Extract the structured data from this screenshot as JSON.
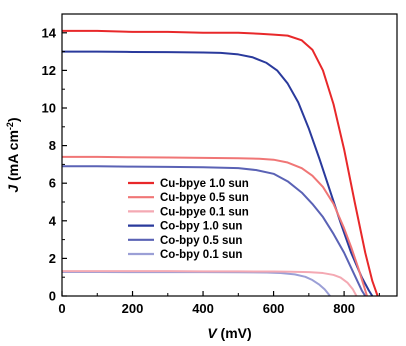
{
  "chart_data": {
    "type": "line",
    "title": "",
    "xlabel": "V (mV)",
    "ylabel": "J (mA cm-2)",
    "xlabel_parts": {
      "var": "V",
      "unit": " (mV)"
    },
    "ylabel_parts": {
      "var": "J",
      "unit": " (mA cm",
      "sup": "-2",
      "close": ")"
    },
    "xlim": [
      0,
      950
    ],
    "ylim": [
      0,
      15
    ],
    "x_ticks": [
      0,
      200,
      400,
      600,
      800
    ],
    "y_ticks": [
      0,
      2,
      4,
      6,
      8,
      10,
      12,
      14
    ],
    "legend_position": "lower-left",
    "series": [
      {
        "name": "Cu-bpye  1.0 sun",
        "color": "#e8282a",
        "x": [
          0,
          100,
          200,
          300,
          400,
          500,
          560,
          600,
          640,
          680,
          710,
          740,
          770,
          800,
          830,
          860,
          880,
          895
        ],
        "y": [
          14.1,
          14.1,
          14.05,
          14.05,
          14.0,
          14.0,
          13.95,
          13.9,
          13.85,
          13.6,
          13.1,
          12.0,
          10.2,
          7.8,
          5.0,
          2.3,
          0.8,
          0.0
        ]
      },
      {
        "name": "Cu-bpye  0.5 sun",
        "color": "#f07676",
        "x": [
          0,
          100,
          200,
          300,
          400,
          500,
          560,
          600,
          640,
          680,
          710,
          740,
          770,
          800,
          820,
          840,
          855,
          865
        ],
        "y": [
          7.4,
          7.4,
          7.38,
          7.37,
          7.35,
          7.33,
          7.3,
          7.25,
          7.1,
          6.8,
          6.4,
          5.8,
          4.9,
          3.6,
          2.6,
          1.5,
          0.6,
          0.0
        ]
      },
      {
        "name": "Cu-bpye  0.1 sun",
        "color": "#f4a9b3",
        "x": [
          0,
          100,
          200,
          300,
          400,
          500,
          600,
          650,
          700,
          740,
          770,
          790,
          810,
          825,
          835
        ],
        "y": [
          1.32,
          1.32,
          1.32,
          1.32,
          1.31,
          1.31,
          1.3,
          1.29,
          1.27,
          1.22,
          1.12,
          0.98,
          0.7,
          0.35,
          0.0
        ]
      },
      {
        "name": "Co-bpy  1.0 sun",
        "color": "#2a3a9c",
        "x": [
          0,
          100,
          200,
          300,
          400,
          450,
          500,
          540,
          580,
          610,
          640,
          670,
          700,
          730,
          760,
          790,
          820,
          850,
          870,
          880
        ],
        "y": [
          13.0,
          13.0,
          12.98,
          12.97,
          12.95,
          12.93,
          12.85,
          12.7,
          12.4,
          12.0,
          11.3,
          10.3,
          8.9,
          7.3,
          5.6,
          3.9,
          2.3,
          1.0,
          0.3,
          0.0
        ]
      },
      {
        "name": "Co-bpy  0.5 sun",
        "color": "#5a62b5",
        "x": [
          0,
          100,
          200,
          300,
          400,
          500,
          550,
          600,
          640,
          680,
          710,
          740,
          770,
          800,
          820,
          840,
          850,
          860
        ],
        "y": [
          6.9,
          6.9,
          6.88,
          6.87,
          6.85,
          6.8,
          6.7,
          6.5,
          6.1,
          5.5,
          4.9,
          4.2,
          3.3,
          2.3,
          1.5,
          0.7,
          0.3,
          0.0
        ]
      },
      {
        "name": "Co-bpy  0.1 sun",
        "color": "#9b9fd6",
        "x": [
          0,
          100,
          200,
          300,
          400,
          500,
          580,
          620,
          660,
          690,
          710,
          730,
          745,
          755,
          760
        ],
        "y": [
          1.28,
          1.28,
          1.27,
          1.27,
          1.27,
          1.26,
          1.25,
          1.22,
          1.15,
          1.02,
          0.85,
          0.6,
          0.35,
          0.12,
          0.0
        ]
      }
    ]
  }
}
